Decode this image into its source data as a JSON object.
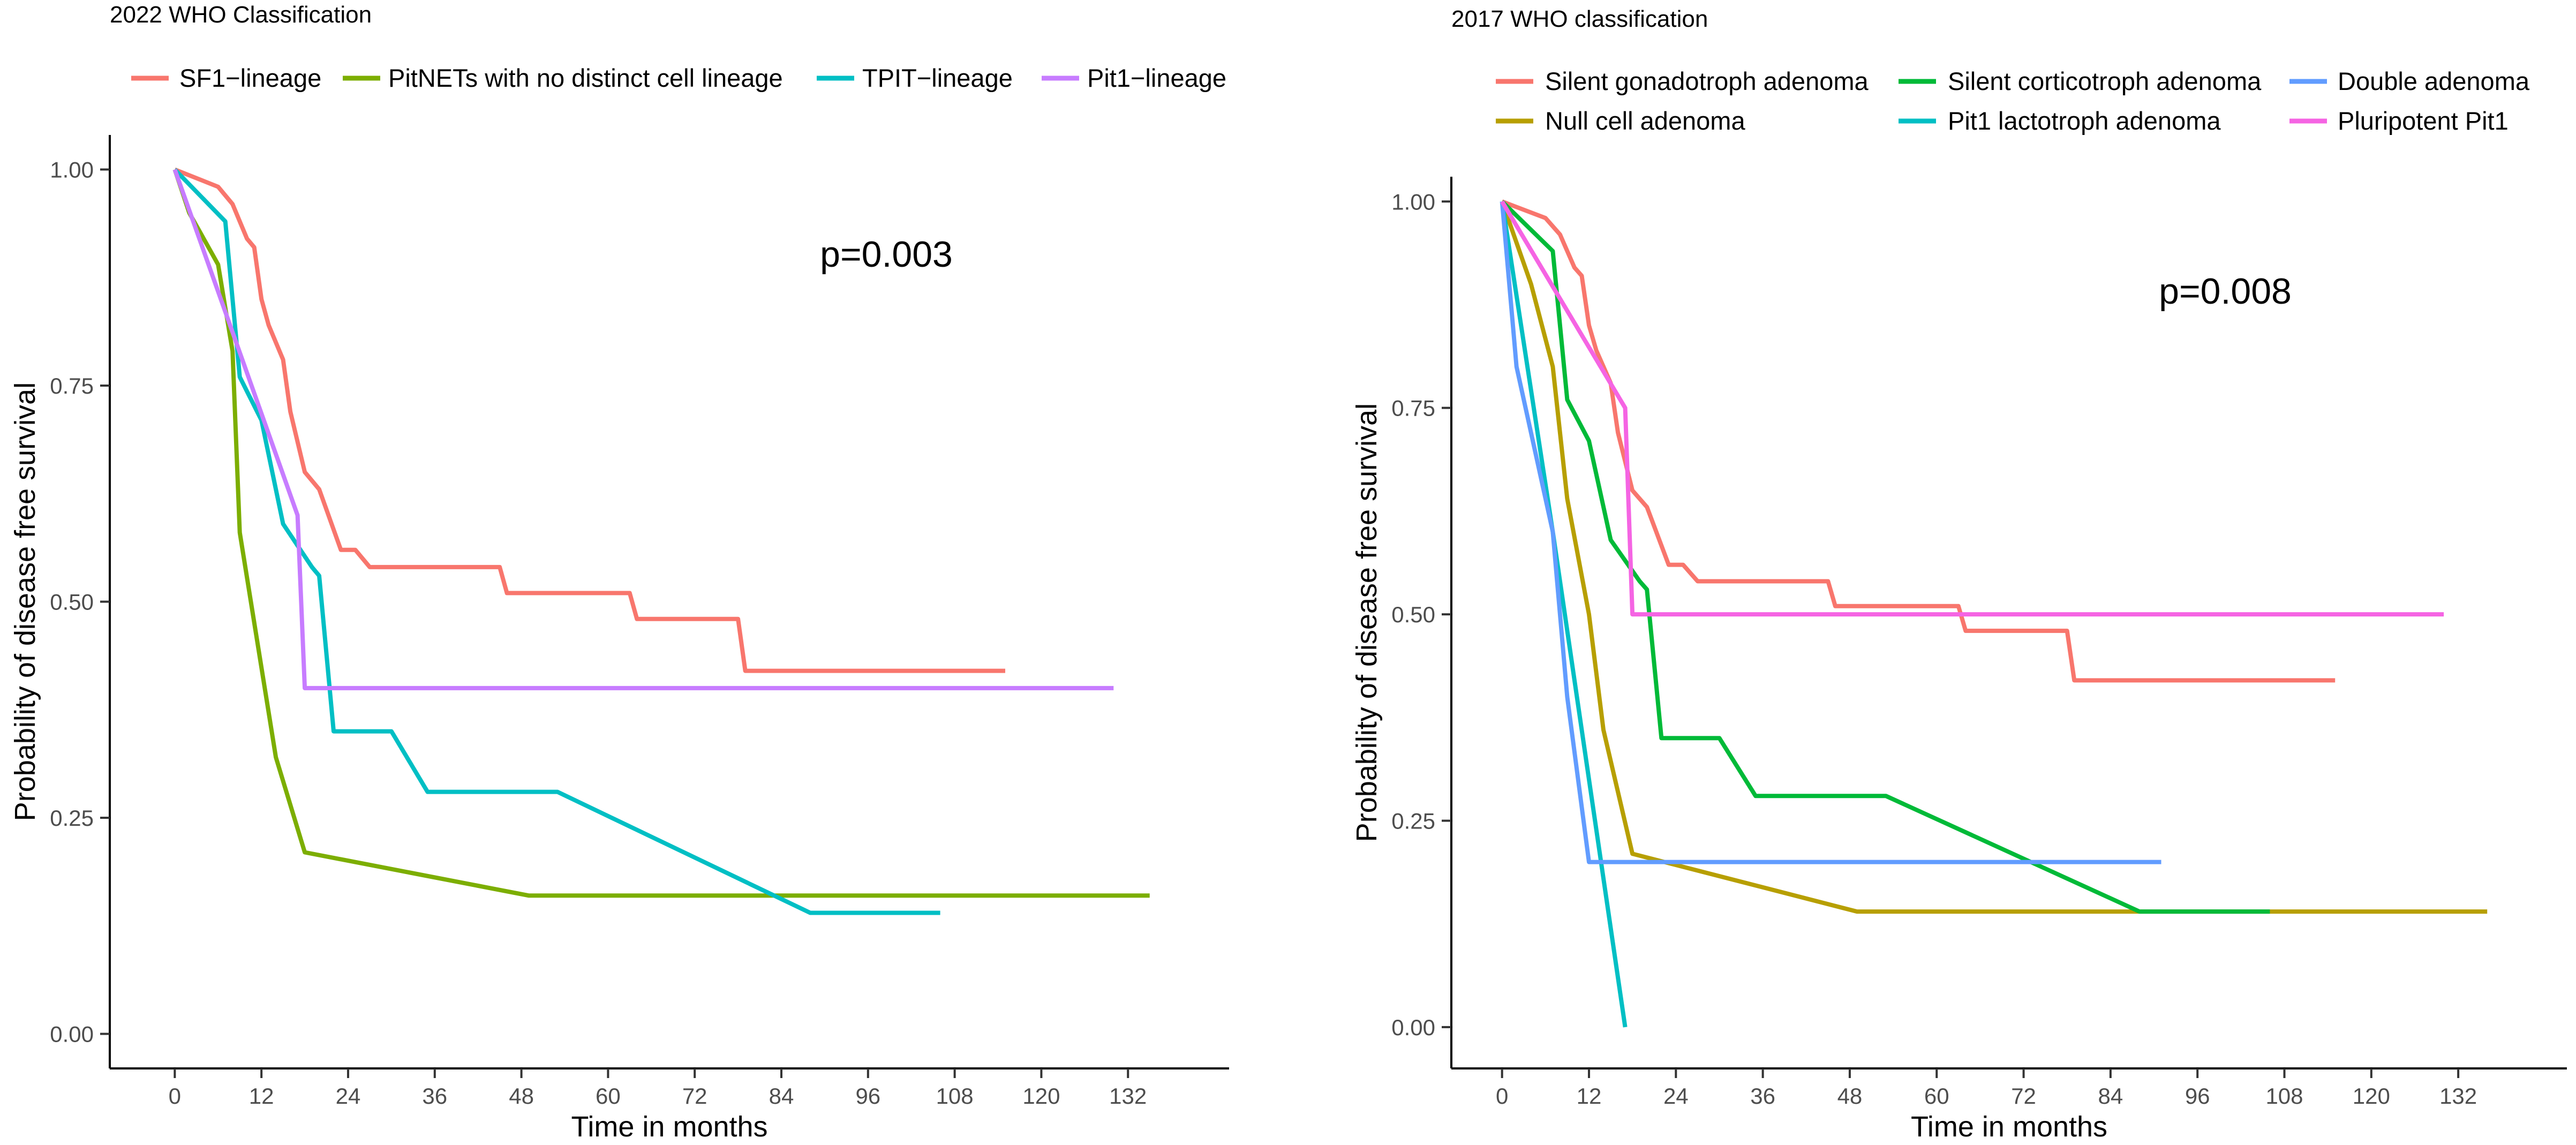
{
  "chart_data": [
    {
      "type": "line",
      "step": false,
      "title": "2022 WHO Classification",
      "xlabel": "Time in months",
      "ylabel": "Probability of disease free survival",
      "xlim": [
        -9,
        146
      ],
      "ylim": [
        -0.04,
        1.04
      ],
      "xticks": [
        0,
        12,
        24,
        36,
        48,
        60,
        72,
        84,
        96,
        108,
        120,
        132
      ],
      "yticks": [
        0.0,
        0.25,
        0.5,
        0.75,
        1.0
      ],
      "ytick_labels": [
        "0.00",
        "0.25",
        "0.50",
        "0.75",
        "1.00"
      ],
      "annotation": "p=0.003",
      "legend_position": "top",
      "series": [
        {
          "name": "SF1−lineage",
          "color": "#F8766D",
          "x": [
            0,
            6,
            8,
            9,
            10,
            11,
            12,
            13,
            15,
            16,
            18,
            20,
            23,
            25,
            27,
            45,
            46,
            63,
            64,
            78,
            79,
            115
          ],
          "y": [
            1.0,
            0.98,
            0.96,
            0.94,
            0.92,
            0.91,
            0.85,
            0.82,
            0.78,
            0.72,
            0.65,
            0.63,
            0.56,
            0.56,
            0.54,
            0.54,
            0.51,
            0.51,
            0.48,
            0.48,
            0.42,
            0.42
          ]
        },
        {
          "name": "PitNETs with no distinct cell lineage",
          "color": "#7CAE00",
          "x": [
            0,
            2,
            4,
            6,
            7,
            8,
            9,
            14,
            18,
            49,
            135
          ],
          "y": [
            1.0,
            0.95,
            0.92,
            0.89,
            0.84,
            0.79,
            0.58,
            0.32,
            0.21,
            0.16,
            0.16
          ]
        },
        {
          "name": "TPIT−lineage",
          "color": "#00BFC4",
          "x": [
            0,
            7,
            9,
            12,
            15,
            19,
            20,
            22,
            30,
            35,
            53,
            88,
            106
          ],
          "y": [
            1.0,
            0.94,
            0.76,
            0.71,
            0.59,
            0.54,
            0.53,
            0.35,
            0.35,
            0.28,
            0.28,
            0.14,
            0.14
          ]
        },
        {
          "name": "Pit1−lineage",
          "color": "#C77CFF",
          "x": [
            0,
            17,
            18,
            130
          ],
          "y": [
            1.0,
            0.6,
            0.4,
            0.4
          ]
        }
      ]
    },
    {
      "type": "line",
      "step": false,
      "title": "2017 WHO classification",
      "xlabel": "Time in months",
      "ylabel": "Probability of disease free survival",
      "xlim": [
        -7,
        147
      ],
      "ylim": [
        -0.05,
        1.03
      ],
      "xticks": [
        0,
        12,
        24,
        36,
        48,
        60,
        72,
        84,
        96,
        108,
        120,
        132
      ],
      "yticks": [
        0.0,
        0.25,
        0.5,
        0.75,
        1.0
      ],
      "ytick_labels": [
        "0.00",
        "0.25",
        "0.50",
        "0.75",
        "1.00"
      ],
      "annotation": "p=0.008",
      "legend_position": "top",
      "series": [
        {
          "name": "Silent gonadotroph adenoma",
          "color": "#F8766D",
          "x": [
            0,
            6,
            8,
            9,
            10,
            11,
            12,
            13,
            15,
            16,
            18,
            20,
            23,
            25,
            27,
            45,
            46,
            63,
            64,
            78,
            79,
            115
          ],
          "y": [
            1.0,
            0.98,
            0.96,
            0.94,
            0.92,
            0.91,
            0.85,
            0.82,
            0.78,
            0.72,
            0.65,
            0.63,
            0.56,
            0.56,
            0.54,
            0.54,
            0.51,
            0.51,
            0.48,
            0.48,
            0.42,
            0.42
          ]
        },
        {
          "name": "Null cell adenoma",
          "color": "#B79F00",
          "x": [
            0,
            4,
            7,
            9,
            12,
            14,
            18,
            49,
            136
          ],
          "y": [
            1.0,
            0.9,
            0.8,
            0.64,
            0.5,
            0.36,
            0.21,
            0.14,
            0.14
          ]
        },
        {
          "name": "Silent corticotroph adenoma",
          "color": "#00BA38",
          "x": [
            0,
            7,
            9,
            12,
            15,
            19,
            20,
            22,
            30,
            35,
            53,
            88,
            106
          ],
          "y": [
            1.0,
            0.94,
            0.76,
            0.71,
            0.59,
            0.54,
            0.53,
            0.35,
            0.35,
            0.28,
            0.28,
            0.14,
            0.14
          ]
        },
        {
          "name": "Pit1 lactotroph adenoma",
          "color": "#00BFC4",
          "x": [
            0,
            7,
            17
          ],
          "y": [
            1.0,
            0.6,
            0.0
          ]
        },
        {
          "name": "Double adenoma",
          "color": "#619CFF",
          "x": [
            0,
            2,
            7,
            9,
            12,
            91
          ],
          "y": [
            1.0,
            0.8,
            0.6,
            0.4,
            0.2,
            0.2
          ]
        },
        {
          "name": "Pluripotent Pit1",
          "color": "#F564E3",
          "x": [
            0,
            17,
            18,
            130
          ],
          "y": [
            1.0,
            0.75,
            0.5,
            0.5
          ]
        }
      ]
    }
  ]
}
